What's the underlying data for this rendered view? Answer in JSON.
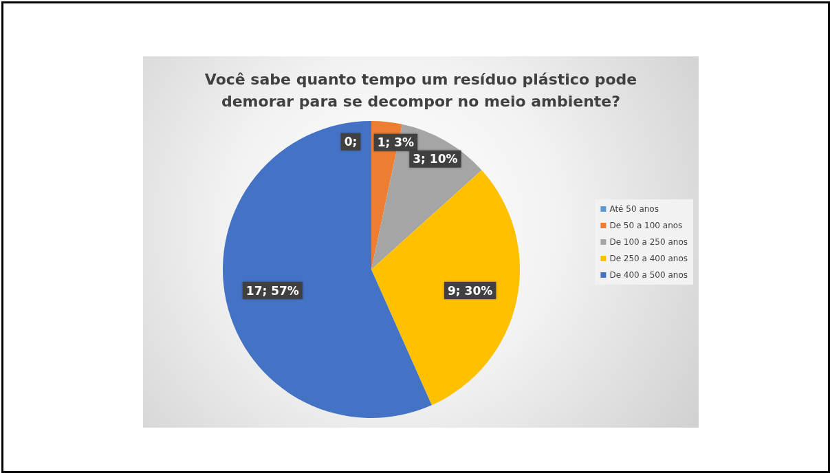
{
  "chart_data": {
    "type": "pie",
    "title": "Você sabe quanto tempo um resíduo plástico pode\ndemorar para se decompor no meio ambiente?",
    "categories": [
      "Até 50 anos",
      "De 50 a 100 anos",
      "De 100 a 250 anos",
      "De 250 a 400 anos",
      "De 400 a 500 anos"
    ],
    "values": [
      0,
      1,
      3,
      9,
      17
    ],
    "colors": [
      "#5b9bd5",
      "#ed7d31",
      "#a5a5a5",
      "#ffc000",
      "#4472c4"
    ],
    "value_labels": [
      "0;",
      "1; 3%",
      "3; 10%",
      "9; 30%",
      "17; 57%"
    ],
    "legend": "right"
  }
}
